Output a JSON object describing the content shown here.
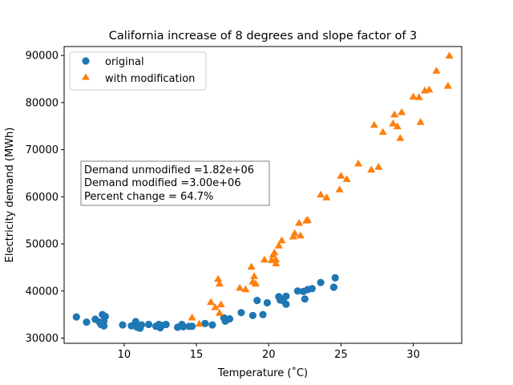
{
  "chart_data": {
    "type": "scatter",
    "title": "California increase of 8 degrees and slope factor of 3",
    "xlabel": "Temperature (˚C)",
    "ylabel": "Electricity demand (MWh)",
    "xlim": [
      5.85,
      33.35
    ],
    "ylim": [
      28900,
      91900
    ],
    "x_ticks": [
      10,
      15,
      20,
      25,
      30
    ],
    "y_ticks": [
      30000,
      40000,
      50000,
      60000,
      70000,
      80000,
      90000
    ],
    "x_tick_labels": [
      "10",
      "15",
      "20",
      "25",
      "30"
    ],
    "y_tick_labels": [
      "30000",
      "40000",
      "50000",
      "60000",
      "70000",
      "80000",
      "90000"
    ],
    "grid": false,
    "legend_position": "top-left",
    "annotation": [
      "Demand unmodified =1.82e+06",
      "Demand modified =3.00e+06",
      "Percent change = 64.7%"
    ],
    "series": [
      {
        "name": "original",
        "marker": "circle",
        "color": "#1f77b4",
        "points": [
          [
            6.7,
            34500
          ],
          [
            7.4,
            33400
          ],
          [
            8.0,
            34000
          ],
          [
            8.3,
            33400
          ],
          [
            8.4,
            32900
          ],
          [
            8.5,
            35000
          ],
          [
            8.6,
            32600
          ],
          [
            8.7,
            34600
          ],
          [
            8.6,
            33600
          ],
          [
            9.9,
            32800
          ],
          [
            10.5,
            32600
          ],
          [
            10.8,
            33500
          ],
          [
            10.9,
            32300
          ],
          [
            11.1,
            32100
          ],
          [
            11.2,
            32800
          ],
          [
            11.7,
            32900
          ],
          [
            12.2,
            32500
          ],
          [
            12.4,
            32900
          ],
          [
            12.5,
            32200
          ],
          [
            12.6,
            32700
          ],
          [
            12.9,
            32900
          ],
          [
            13.7,
            32300
          ],
          [
            14.0,
            32900
          ],
          [
            14.1,
            32400
          ],
          [
            14.5,
            32500
          ],
          [
            14.7,
            32500
          ],
          [
            15.6,
            33100
          ],
          [
            16.1,
            32800
          ],
          [
            16.9,
            34300
          ],
          [
            17.0,
            33600
          ],
          [
            17.3,
            34100
          ],
          [
            18.1,
            35400
          ],
          [
            18.9,
            34800
          ],
          [
            19.2,
            38000
          ],
          [
            19.6,
            35000
          ],
          [
            19.9,
            37500
          ],
          [
            20.7,
            38800
          ],
          [
            20.8,
            38100
          ],
          [
            21.0,
            37900
          ],
          [
            21.2,
            37200
          ],
          [
            21.2,
            38900
          ],
          [
            22.0,
            40000
          ],
          [
            22.4,
            39900
          ],
          [
            22.5,
            38300
          ],
          [
            22.7,
            40300
          ],
          [
            23.0,
            40500
          ],
          [
            23.6,
            41800
          ],
          [
            24.5,
            40800
          ],
          [
            24.6,
            42800
          ]
        ]
      },
      {
        "name": "with modification",
        "marker": "triangle",
        "color": "#ff7f0e",
        "points": [
          [
            14.7,
            34400
          ],
          [
            15.2,
            33100
          ],
          [
            16.0,
            37700
          ],
          [
            16.3,
            36600
          ],
          [
            16.5,
            42600
          ],
          [
            16.6,
            35400
          ],
          [
            16.6,
            41600
          ],
          [
            16.7,
            37200
          ],
          [
            18.0,
            40700
          ],
          [
            18.4,
            40400
          ],
          [
            18.8,
            45200
          ],
          [
            18.9,
            42000
          ],
          [
            19.0,
            43200
          ],
          [
            19.1,
            41600
          ],
          [
            19.7,
            46700
          ],
          [
            20.2,
            46600
          ],
          [
            20.3,
            47700
          ],
          [
            20.4,
            48200
          ],
          [
            20.5,
            45900
          ],
          [
            20.5,
            46700
          ],
          [
            20.7,
            49700
          ],
          [
            20.9,
            50800
          ],
          [
            21.7,
            51600
          ],
          [
            21.8,
            52300
          ],
          [
            22.1,
            54500
          ],
          [
            22.2,
            51800
          ],
          [
            22.6,
            55000
          ],
          [
            22.7,
            55100
          ],
          [
            23.6,
            60500
          ],
          [
            24.0,
            59900
          ],
          [
            24.9,
            61600
          ],
          [
            25.0,
            64500
          ],
          [
            25.4,
            63800
          ],
          [
            26.2,
            67100
          ],
          [
            27.1,
            65800
          ],
          [
            27.3,
            75300
          ],
          [
            27.6,
            66400
          ],
          [
            27.9,
            73800
          ],
          [
            28.6,
            75600
          ],
          [
            28.7,
            77500
          ],
          [
            28.9,
            75000
          ],
          [
            29.1,
            72500
          ],
          [
            29.2,
            78000
          ],
          [
            30.0,
            81300
          ],
          [
            30.4,
            81200
          ],
          [
            30.5,
            75900
          ],
          [
            30.8,
            82600
          ],
          [
            31.1,
            82800
          ],
          [
            31.6,
            86800
          ],
          [
            32.4,
            83600
          ],
          [
            32.5,
            90000
          ]
        ]
      }
    ]
  }
}
